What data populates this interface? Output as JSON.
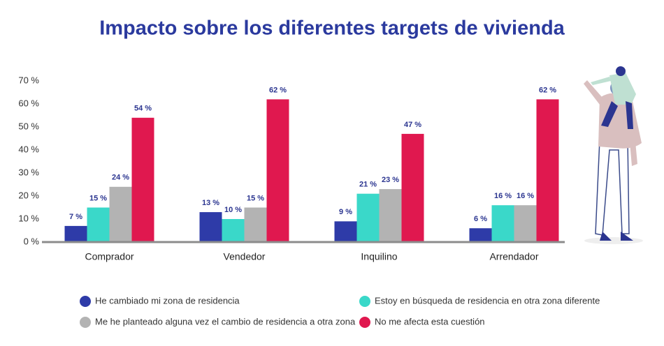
{
  "chart_data": {
    "type": "bar",
    "title": "Impacto sobre los diferentes targets de vivienda",
    "categories": [
      "Comprador",
      "Vendedor",
      "Inquilino",
      "Arrendador"
    ],
    "series": [
      {
        "name": "He cambiado mi zona de residencia",
        "color": "#2e3ba8",
        "values": [
          7,
          13,
          9,
          6
        ],
        "value_labels": [
          "7 %",
          "13 %",
          "9 %",
          "6 %"
        ]
      },
      {
        "name": "Estoy en búsqueda de residencia en otra zona diferente",
        "color": "#3ad8c9",
        "values": [
          15,
          10,
          21,
          16
        ],
        "value_labels": [
          "15 %",
          "10 %",
          "21 %",
          "16 %"
        ]
      },
      {
        "name": "Me he planteado alguna vez el cambio de residencia a otra zona",
        "color": "#b3b3b3",
        "values": [
          24,
          15,
          23,
          16
        ],
        "value_labels": [
          "24 %",
          "15 %",
          "23 %",
          "16 %"
        ]
      },
      {
        "name": "No me afecta esta cuestión",
        "color": "#e0184f",
        "values": [
          54,
          62,
          47,
          62
        ],
        "value_labels": [
          "54 %",
          "62 %",
          "47 %",
          "62 %"
        ]
      }
    ],
    "ylim": [
      0,
      70
    ],
    "yticks": [
      {
        "value": 0,
        "label": "0 %"
      },
      {
        "value": 10,
        "label": "10 %"
      },
      {
        "value": 20,
        "label": "20 %"
      },
      {
        "value": 30,
        "label": "30 %"
      },
      {
        "value": 40,
        "label": "40 %"
      },
      {
        "value": 50,
        "label": "50 %"
      },
      {
        "value": 60,
        "label": "60 %"
      },
      {
        "value": 70,
        "label": "70 %"
      }
    ],
    "grid": false,
    "legend": "bottom"
  }
}
